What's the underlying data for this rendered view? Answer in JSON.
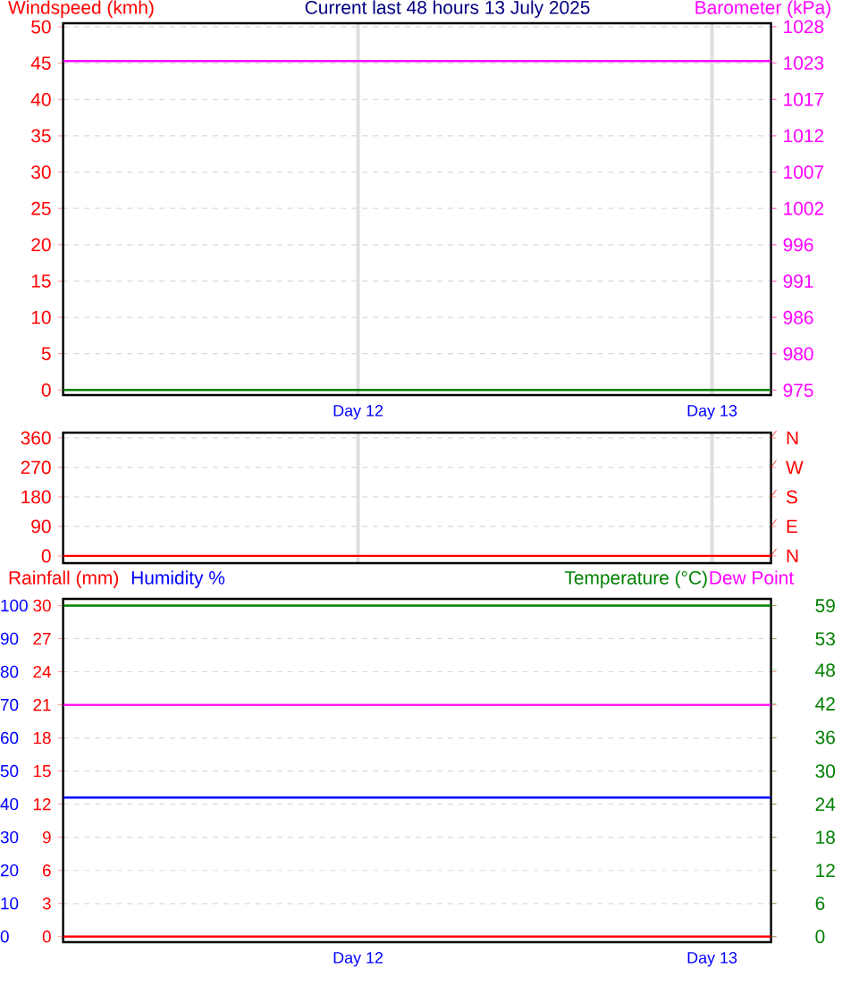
{
  "chart_data": [
    {
      "type": "line",
      "title": "Current last 48 hours 13 July 2025",
      "ylabel": "Windspeed (kmh)",
      "y2label": "Barometer (kPa)",
      "categories": [
        null,
        null,
        null,
        null,
        null,
        null,
        null,
        null,
        null,
        null,
        "Day 12",
        null,
        null,
        null,
        null,
        null,
        null,
        null,
        null,
        null,
        null,
        null,
        "Day 13",
        null,
        null
      ],
      "ylim": [
        -0.7,
        50.5
      ],
      "yticks": [
        0,
        5,
        10,
        15,
        20,
        25,
        30,
        35,
        40,
        45,
        50
      ],
      "y2lim": [
        974.3,
        1028.5
      ],
      "y2ticks": [
        975,
        {
          "value": 980.3,
          "label": "980"
        },
        {
          "value": 985.6,
          "label": "986"
        },
        {
          "value": 990.9,
          "label": "991"
        },
        {
          "value": 996.2,
          "label": "996"
        },
        {
          "value": 1001.5,
          "label": "1002"
        },
        {
          "value": 1006.8,
          "label": "1007"
        },
        {
          "value": 1012.1,
          "label": "1012"
        },
        {
          "value": 1017.4,
          "label": "1017"
        },
        {
          "value": 1022.7,
          "label": "1023"
        },
        1028
      ],
      "grid": true,
      "series": [
        {
          "color": "#008000",
          "values": [
            0,
            0,
            0,
            0,
            0,
            0,
            0,
            0,
            0,
            0,
            0,
            0,
            0,
            0,
            0,
            0,
            0,
            0,
            0,
            0,
            0,
            0,
            0,
            0,
            0
          ]
        },
        {
          "color": "#ff00ff",
          "values": [
            1023,
            1023,
            1023,
            1023,
            1023,
            1023,
            1023,
            1023,
            1023,
            1023,
            1023,
            1023,
            1023,
            1023,
            1023,
            1023,
            1023,
            1023,
            1023,
            1023,
            1023,
            1023,
            1023,
            1023,
            1023
          ],
          "axis": "y2"
        }
      ]
    },
    {
      "type": "line",
      "tick_labels": "y",
      "categories": [
        null,
        null,
        null,
        null,
        null,
        null,
        null,
        null,
        null,
        null,
        null,
        null,
        null,
        null,
        null,
        null,
        null,
        null,
        null,
        null,
        null,
        null,
        null,
        null,
        null
      ],
      "ylim": [
        -22,
        376
      ],
      "yticks": [
        0,
        90,
        180,
        270,
        360
      ],
      "annotations": [
        "N",
        "E",
        "S",
        "W",
        "N"
      ],
      "grid": true,
      "series": [
        {
          "color": "#ff0000",
          "values": [
            0,
            0,
            0,
            0,
            0,
            0,
            0,
            0,
            0,
            0,
            0,
            0,
            0,
            0,
            0,
            0,
            0,
            0,
            0,
            0,
            0,
            0,
            0,
            0,
            0
          ]
        }
      ]
    },
    {
      "type": "line",
      "ylabel": "Rainfall (mm)",
      "y3label": "Humidity %",
      "y2label": "Temperature (°C)",
      "categories": [
        null,
        null,
        null,
        null,
        null,
        null,
        null,
        null,
        null,
        null,
        "Day 12",
        null,
        null,
        null,
        null,
        null,
        null,
        null,
        null,
        null,
        null,
        null,
        "Day 13",
        null,
        null
      ],
      "ylim": [
        -0.5,
        30.6
      ],
      "yticks": [
        0,
        3,
        6,
        9,
        12,
        15,
        18,
        21,
        24,
        27,
        30
      ],
      "y3lim": [
        -1.7,
        102
      ],
      "y3ticks": [
        0,
        10,
        20,
        30,
        40,
        50,
        60,
        70,
        80,
        90,
        100
      ],
      "y2lim": [
        -1,
        60.2
      ],
      "y2ticks": [
        0,
        {
          "value": 5.9,
          "label": "6"
        },
        {
          "value": 11.8,
          "label": "12"
        },
        {
          "value": 17.7,
          "label": "18"
        },
        {
          "value": 23.6,
          "label": "24"
        },
        {
          "value": 29.5,
          "label": "30"
        },
        {
          "value": 35.5,
          "label": "36"
        },
        {
          "value": 41.5,
          "label": "42"
        },
        {
          "value": 47.5,
          "label": "48"
        },
        {
          "value": 53.1,
          "label": "53"
        },
        59
      ],
      "grid": "y",
      "series": [
        {
          "color": "#ff0000",
          "values": [
            0,
            0,
            0,
            0,
            0,
            0,
            0,
            0,
            0,
            0,
            0,
            0,
            0,
            0,
            0,
            0,
            0,
            0,
            0,
            0,
            0,
            0,
            0,
            0,
            0
          ]
        },
        {
          "color": "#0000ff",
          "values": [
            42,
            42,
            42,
            42,
            42,
            42,
            42,
            42,
            42,
            42,
            42,
            42,
            42,
            42,
            42,
            42,
            42,
            42,
            42,
            42,
            42,
            42,
            42,
            42,
            42
          ],
          "axis": "y3"
        },
        {
          "color": "#008000",
          "values": [
            59,
            59,
            59,
            59,
            59,
            59,
            59,
            59,
            59,
            59,
            59,
            59,
            59,
            59,
            59,
            59,
            59,
            59,
            59,
            59,
            59,
            59,
            59,
            59,
            59
          ],
          "axis": "y2"
        },
        {
          "name": "Dew Point",
          "color": "#ff00ff",
          "values": [
            41.3,
            41.3,
            41.3,
            41.3,
            41.3,
            41.3,
            41.3,
            41.3,
            41.3,
            41.3,
            41.3,
            41.3,
            41.3,
            41.3,
            41.3,
            41.3,
            41.3,
            41.3,
            41.3,
            41.3,
            41.3,
            41.3,
            41.3,
            41.3,
            41.3
          ],
          "axis": "y2"
        }
      ]
    }
  ]
}
